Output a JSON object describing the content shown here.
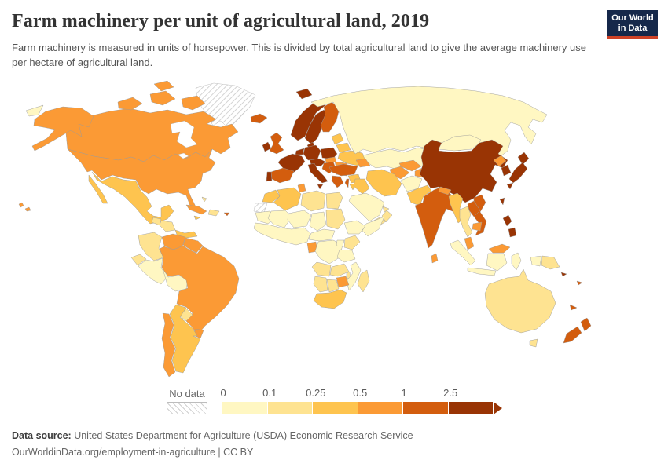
{
  "header": {
    "title": "Farm machinery per unit of agricultural land, 2019",
    "subtitle": "Farm machinery is measured in units of horsepower. This is divided by total agricultural land to give the average machinery use per hectare of agricultural land.",
    "logo": {
      "line1": "Our World",
      "line2": "in Data",
      "bg_color": "#16284a",
      "accent_color": "#cf4226"
    }
  },
  "legend": {
    "no_data_label": "No data",
    "ticks": [
      "0",
      "0.1",
      "0.25",
      "0.5",
      "1",
      "2.5"
    ],
    "bins": [
      {
        "range": "0-0.1",
        "color": "#fff7c2"
      },
      {
        "range": "0.1-0.25",
        "color": "#fee391"
      },
      {
        "range": "0.25-0.5",
        "color": "#fec44f"
      },
      {
        "range": "0.5-1",
        "color": "#fb9a35"
      },
      {
        "range": "1-2.5",
        "color": "#d35d0e"
      },
      {
        "range": ">2.5",
        "color": "#993404"
      }
    ],
    "no_data_pattern": "diagonal-hatch"
  },
  "footer": {
    "source_label": "Data source:",
    "source_text": " United States Department for Agriculture (USDA) Economic Research Service",
    "attribution": "OurWorldinData.org/employment-in-agriculture | CC BY"
  },
  "chart_data": {
    "type": "heatmap",
    "variant": "world-choropleth",
    "title": "Farm machinery per unit of agricultural land, 2019",
    "unit": "horsepower per hectare of agricultural land",
    "year": 2019,
    "legend_bins": [
      "0-0.1",
      "0.1-0.25",
      "0.25-0.5",
      "0.5-1",
      "1-2.5",
      ">2.5",
      "No data"
    ],
    "legend_colors": [
      "#fff7c2",
      "#fee391",
      "#fec44f",
      "#fb9a35",
      "#d35d0e",
      "#993404",
      "hatch"
    ],
    "countries": {
      "canada": "0.5-1",
      "united-states": "0.5-1",
      "greenland": "No data",
      "mexico": "0.25-0.5",
      "guatemala": "0.1-0.25",
      "honduras-nicaragua": "0.1-0.25",
      "costa-rica-panama": "0.25-0.5",
      "cuba": "0.5-1",
      "hispaniola": "0.1-0.25",
      "jamaica": "0.25-0.5",
      "puerto-rico": "1-2.5",
      "bahamas": "0.1-0.25",
      "colombia": "0.1-0.25",
      "venezuela": "0.5-1",
      "guyanas": "0.5-1",
      "ecuador": "0.1-0.25",
      "peru": "0-0.1",
      "bolivia": "0-0.1",
      "brazil": "0.5-1",
      "paraguay": "0.1-0.25",
      "uruguay": "0.5-1",
      "argentina": "0.25-0.5",
      "chile": "0.5-1",
      "iceland": "1-2.5",
      "norway": ">2.5",
      "sweden": ">2.5",
      "finland": "1-2.5",
      "denmark": ">2.5",
      "united-kingdom": "1-2.5",
      "ireland": ">2.5",
      "benelux": ">2.5",
      "germany": ">2.5",
      "france": ">2.5",
      "spain": "1-2.5",
      "portugal": ">2.5",
      "italy": ">2.5",
      "alpine-europe": ">2.5",
      "poland": ">2.5",
      "hungary-slovakia": "0.5-1",
      "baltics": "0.25-0.5",
      "belarus": "0.25-0.5",
      "ukraine": "0.25-0.5",
      "romania": "0.5-1",
      "bulgaria": "1-2.5",
      "balkans": "1-2.5",
      "greece": "1-2.5",
      "russia": "0-0.1",
      "kazakhstan": "0-0.1",
      "caucasus": "0.5-1",
      "turkey": "1-2.5",
      "syria": "0.25-0.5",
      "israel": "1-2.5",
      "jordan": "0.25-0.5",
      "iraq": "0.25-0.5",
      "iran": "0.25-0.5",
      "saudi-arabia": "0-0.1",
      "yemen": "0.1-0.25",
      "oman": "0.1-0.25",
      "uae": "0.1-0.25",
      "turkmenistan": "0.5-1",
      "uzbekistan": "0.5-1",
      "kyrgyzstan-tajikistan": "0.5-1",
      "afghanistan": "0-0.1",
      "pakistan": "0.25-0.5",
      "india": "1-2.5",
      "nepal": "0.5-1",
      "bangladesh": "0.5-1",
      "sri-lanka": "0.5-1",
      "china": ">2.5",
      "mongolia": "0-0.1",
      "north-korea": "0.5-1",
      "south-korea": ">2.5",
      "japan": ">2.5",
      "taiwan": ">2.5",
      "myanmar": "0.25-0.5",
      "thailand": "0.1-0.25",
      "laos": "1-2.5",
      "vietnam": "1-2.5",
      "cambodia": "0.5-1",
      "malaysia": "0.5-1",
      "indonesia": "0-0.1",
      "philippines": ">2.5",
      "papua-new-guinea": "0.1-0.25",
      "australia": "0.1-0.25",
      "new-zealand": "1-2.5",
      "new-caledonia": "1-2.5",
      "fiji": "1-2.5",
      "solomon-islands": ">2.5",
      "morocco": "0.25-0.5",
      "western-sahara": "No data",
      "algeria": "0.25-0.5",
      "tunisia": "0.5-1",
      "libya": "0.1-0.25",
      "egypt": "0.1-0.25",
      "mauritania": "0-0.1",
      "mali": "0-0.1",
      "niger": "0-0.1",
      "chad": "0-0.1",
      "sudan": "0.1-0.25",
      "west-africa": "0-0.1",
      "cameroon-car": "0-0.1",
      "ethiopia": "0-0.1",
      "somalia": "0-0.1",
      "gabon": "0.5-1",
      "drc": "0-0.1",
      "uganda": "0-0.1",
      "kenya": "0.1-0.25",
      "tanzania": "0-0.1",
      "angola": "0.1-0.25",
      "zambia": "0.1-0.25",
      "malawi": "0.1-0.25",
      "mozambique": "0-0.1",
      "zimbabwe": "0.5-1",
      "botswana": "0.1-0.25",
      "namibia": "0.1-0.25",
      "south-africa": "0.25-0.5",
      "madagascar": "0.1-0.25"
    }
  }
}
